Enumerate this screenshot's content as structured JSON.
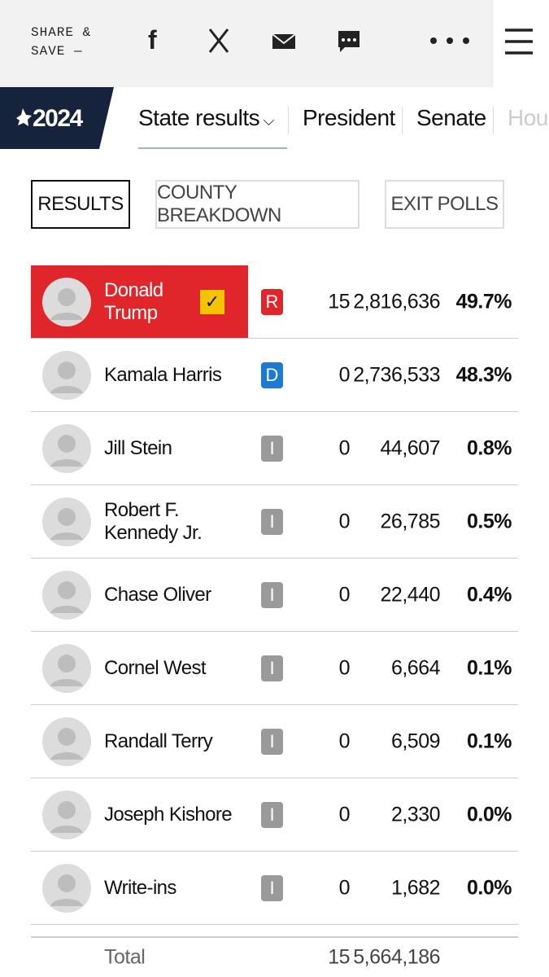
{
  "header": {
    "share": "SHARE &",
    "save": "SAVE —"
  },
  "nav": {
    "logo": "2024",
    "items": [
      "State results",
      "President",
      "Senate",
      "House"
    ]
  },
  "tabs": [
    "RESULTS",
    "COUNTY BREAKDOWN",
    "EXIT POLLS"
  ],
  "results": {
    "rows": [
      {
        "name": "Donald Trump",
        "party": "R",
        "electoral_votes": "15",
        "votes": "2,816,636",
        "percent": "49.7%",
        "winner": true
      },
      {
        "name": "Kamala Harris",
        "party": "D",
        "electoral_votes": "0",
        "votes": "2,736,533",
        "percent": "48.3%",
        "winner": false
      },
      {
        "name": "Jill Stein",
        "party": "I",
        "electoral_votes": "0",
        "votes": "44,607",
        "percent": "0.8%",
        "winner": false
      },
      {
        "name": "Robert F. Kennedy Jr.",
        "party": "I",
        "electoral_votes": "0",
        "votes": "26,785",
        "percent": "0.5%",
        "winner": false
      },
      {
        "name": "Chase Oliver",
        "party": "I",
        "electoral_votes": "0",
        "votes": "22,440",
        "percent": "0.4%",
        "winner": false
      },
      {
        "name": "Cornel West",
        "party": "I",
        "electoral_votes": "0",
        "votes": "6,664",
        "percent": "0.1%",
        "winner": false
      },
      {
        "name": "Randall Terry",
        "party": "I",
        "electoral_votes": "0",
        "votes": "6,509",
        "percent": "0.1%",
        "winner": false
      },
      {
        "name": "Joseph Kishore",
        "party": "I",
        "electoral_votes": "0",
        "votes": "2,330",
        "percent": "0.0%",
        "winner": false
      },
      {
        "name": "Write-ins",
        "party": "I",
        "electoral_votes": "0",
        "votes": "1,682",
        "percent": "0.0%",
        "winner": false
      }
    ],
    "total": {
      "label": "Total",
      "electoral_votes": "15",
      "votes": "5,664,186"
    }
  }
}
